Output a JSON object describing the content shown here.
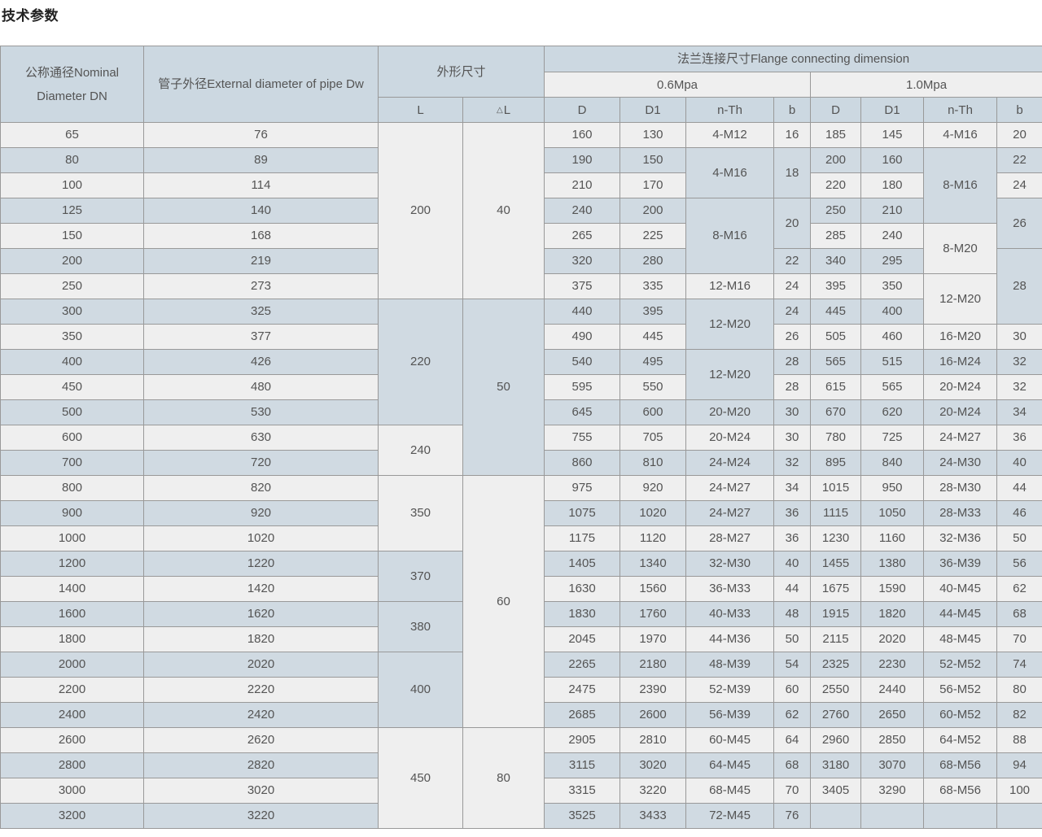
{
  "title": "技术参数",
  "colors": {
    "header_bg": "#ccd8e1",
    "row_blue": "#d0dae2",
    "row_light": "#efefef",
    "pressure_bg": "#efefef",
    "border": "#999999",
    "text": "#545454",
    "title_color": "#222222"
  },
  "table": {
    "headers": {
      "dn": "公称通径Nominal Diameter DN",
      "dw": "管子外径External diameter of pipe Dw",
      "overall_dims": "外形尺寸",
      "flange": "法兰连接尺寸Flange connecting dimension",
      "p06": "0.6Mpa",
      "p10": "1.0Mpa",
      "l": "L",
      "dl_triangle": "△",
      "dl_letter": "L",
      "d": "D",
      "d1": "D1",
      "n_th": "n-Th",
      "b": "b"
    },
    "rows": [
      [
        "65",
        "76",
        [
          "200",
          7
        ],
        [
          "40",
          7
        ],
        "160",
        "130",
        "4-M12",
        "16",
        "185",
        "145",
        "4-M16",
        "20"
      ],
      [
        "80",
        "89",
        "190",
        "150",
        [
          "4-M16",
          2
        ],
        [
          "18",
          2
        ],
        "200",
        "160",
        [
          "8-M16",
          3
        ],
        "22"
      ],
      [
        "100",
        "114",
        "210",
        "170",
        "220",
        "180",
        "24"
      ],
      [
        "125",
        "140",
        "240",
        "200",
        [
          "8-M16",
          3
        ],
        [
          "20",
          2
        ],
        "250",
        "210",
        [
          "26",
          2
        ]
      ],
      [
        "150",
        "168",
        "265",
        "225",
        "285",
        "240",
        [
          "8-M20",
          2
        ]
      ],
      [
        "200",
        "219",
        "320",
        "280",
        "22",
        "340",
        "295",
        [
          "28",
          3
        ]
      ],
      [
        "250",
        "273",
        "375",
        "335",
        "12-M16",
        "24",
        "395",
        "350",
        [
          "12-M20",
          2
        ]
      ],
      [
        "300",
        "325",
        [
          "220",
          5
        ],
        [
          "50",
          7
        ],
        "440",
        "395",
        [
          "12-M20",
          2
        ],
        "24",
        "445",
        "400"
      ],
      [
        "350",
        "377",
        "490",
        "445",
        "26",
        "505",
        "460",
        "16-M20",
        "30"
      ],
      [
        "400",
        "426",
        "540",
        "495",
        [
          "12-M20",
          2
        ],
        "28",
        "565",
        "515",
        "16-M24",
        "32"
      ],
      [
        "450",
        "480",
        "595",
        "550",
        "28",
        "615",
        "565",
        "20-M24",
        "32"
      ],
      [
        "500",
        "530",
        "645",
        "600",
        "20-M20",
        "30",
        "670",
        "620",
        "20-M24",
        "34"
      ],
      [
        "600",
        "630",
        [
          "240",
          2
        ],
        "755",
        "705",
        "20-M24",
        "30",
        "780",
        "725",
        "24-M27",
        "36"
      ],
      [
        "700",
        "720",
        "860",
        "810",
        "24-M24",
        "32",
        "895",
        "840",
        "24-M30",
        "40"
      ],
      [
        "800",
        "820",
        [
          "350",
          3
        ],
        [
          "60",
          10
        ],
        "975",
        "920",
        "24-M27",
        "34",
        "1015",
        "950",
        "28-M30",
        "44"
      ],
      [
        "900",
        "920",
        "1075",
        "1020",
        "24-M27",
        "36",
        "1115",
        "1050",
        "28-M33",
        "46"
      ],
      [
        "1000",
        "1020",
        "1175",
        "1120",
        "28-M27",
        "36",
        "1230",
        "1160",
        "32-M36",
        "50"
      ],
      [
        "1200",
        "1220",
        [
          "370",
          2
        ],
        "1405",
        "1340",
        "32-M30",
        "40",
        "1455",
        "1380",
        "36-M39",
        "56"
      ],
      [
        "1400",
        "1420",
        "1630",
        "1560",
        "36-M33",
        "44",
        "1675",
        "1590",
        "40-M45",
        "62"
      ],
      [
        "1600",
        "1620",
        [
          "380",
          2
        ],
        "1830",
        "1760",
        "40-M33",
        "48",
        "1915",
        "1820",
        "44-M45",
        "68"
      ],
      [
        "1800",
        "1820",
        "2045",
        "1970",
        "44-M36",
        "50",
        "2115",
        "2020",
        "48-M45",
        "70"
      ],
      [
        "2000",
        "2020",
        [
          "400",
          3
        ],
        "2265",
        "2180",
        "48-M39",
        "54",
        "2325",
        "2230",
        "52-M52",
        "74"
      ],
      [
        "2200",
        "2220",
        "2475",
        "2390",
        "52-M39",
        "60",
        "2550",
        "2440",
        "56-M52",
        "80"
      ],
      [
        "2400",
        "2420",
        "2685",
        "2600",
        "56-M39",
        "62",
        "2760",
        "2650",
        "60-M52",
        "82"
      ],
      [
        "2600",
        "2620",
        [
          "450",
          4
        ],
        [
          "80",
          4
        ],
        "2905",
        "2810",
        "60-M45",
        "64",
        "2960",
        "2850",
        "64-M52",
        "88"
      ],
      [
        "2800",
        "2820",
        "3115",
        "3020",
        "64-M45",
        "68",
        "3180",
        "3070",
        "68-M56",
        "94"
      ],
      [
        "3000",
        "3020",
        "3315",
        "3220",
        "68-M45",
        "70",
        "3405",
        "3290",
        "68-M56",
        "100"
      ],
      [
        "3200",
        "3220",
        "3525",
        "3433",
        "72-M45",
        "76",
        "",
        "",
        "",
        ""
      ]
    ]
  }
}
